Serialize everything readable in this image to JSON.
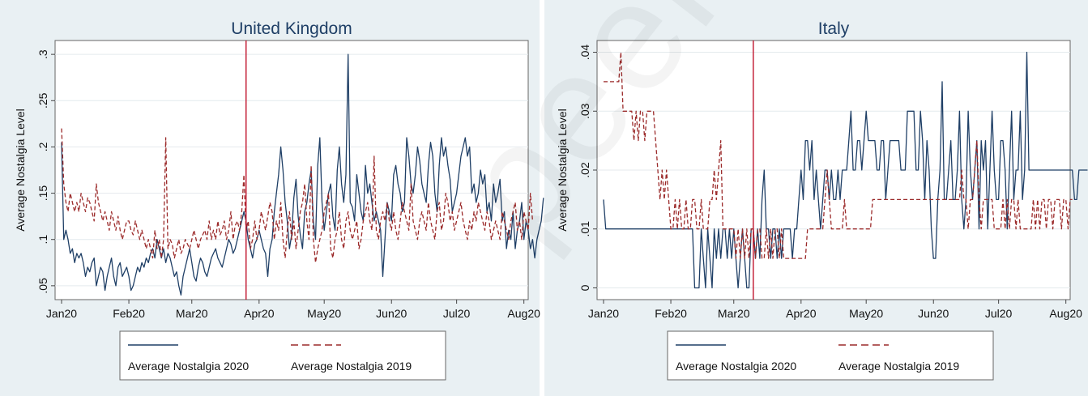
{
  "figure": {
    "background": "#e9f0f3",
    "plot_background": "#ffffff",
    "line_2020_color": "#1f3f66",
    "line_2019_color": "#9b2a2a",
    "event_line_color": "#c0142c",
    "watermark": "peer re"
  },
  "chart_data": [
    {
      "type": "line",
      "title": "United Kingdom",
      "ylabel": "Average Nostalgia Level",
      "xlabel": "",
      "ylim": [
        0.035,
        0.315
      ],
      "yticks": [
        0.05,
        0.1,
        0.15,
        0.2,
        0.25,
        0.3
      ],
      "ytick_labels": [
        ".05",
        ".1",
        ".15",
        ".2",
        ".25",
        ".3"
      ],
      "xlim": [
        0,
        212
      ],
      "xticks": [
        0,
        31,
        60,
        91,
        121,
        152,
        182,
        213
      ],
      "xtick_labels": [
        "Jan20",
        "Feb20",
        "Mar20",
        "Apr20",
        "May20",
        "Jun20",
        "Jul20",
        "Aug20"
      ],
      "event_x": 85,
      "legend": [
        "Average Nostalgia 2020",
        "Average Nostalgia 2019"
      ],
      "legend_position": "bottom",
      "grid": "horizontal",
      "series": [
        {
          "name": "Average Nostalgia 2020",
          "style": "solid",
          "values": [
            0.205,
            0.1,
            0.11,
            0.1,
            0.085,
            0.09,
            0.075,
            0.085,
            0.08,
            0.085,
            0.075,
            0.06,
            0.07,
            0.065,
            0.075,
            0.08,
            0.05,
            0.06,
            0.07,
            0.065,
            0.045,
            0.06,
            0.07,
            0.08,
            0.06,
            0.05,
            0.07,
            0.075,
            0.06,
            0.065,
            0.07,
            0.06,
            0.045,
            0.05,
            0.06,
            0.07,
            0.065,
            0.075,
            0.07,
            0.08,
            0.075,
            0.085,
            0.09,
            0.08,
            0.1,
            0.09,
            0.08,
            0.09,
            0.075,
            0.085,
            0.08,
            0.07,
            0.06,
            0.065,
            0.05,
            0.04,
            0.06,
            0.07,
            0.08,
            0.09,
            0.075,
            0.06,
            0.055,
            0.07,
            0.08,
            0.075,
            0.065,
            0.06,
            0.07,
            0.08,
            0.085,
            0.09,
            0.08,
            0.075,
            0.07,
            0.08,
            0.09,
            0.1,
            0.095,
            0.085,
            0.09,
            0.1,
            0.11,
            0.12,
            0.13,
            0.12,
            0.1,
            0.09,
            0.08,
            0.095,
            0.1,
            0.11,
            0.1,
            0.09,
            0.085,
            0.06,
            0.09,
            0.1,
            0.13,
            0.15,
            0.17,
            0.2,
            0.175,
            0.14,
            0.12,
            0.09,
            0.105,
            0.145,
            0.165,
            0.125,
            0.105,
            0.09,
            0.13,
            0.14,
            0.16,
            0.175,
            0.12,
            0.1,
            0.18,
            0.21,
            0.14,
            0.11,
            0.13,
            0.15,
            0.16,
            0.125,
            0.11,
            0.175,
            0.2,
            0.16,
            0.14,
            0.17,
            0.3,
            0.14,
            0.135,
            0.12,
            0.17,
            0.15,
            0.13,
            0.12,
            0.18,
            0.15,
            0.16,
            0.14,
            0.12,
            0.13,
            0.12,
            0.11,
            0.06,
            0.1,
            0.14,
            0.13,
            0.12,
            0.17,
            0.18,
            0.16,
            0.15,
            0.13,
            0.14,
            0.21,
            0.19,
            0.16,
            0.15,
            0.17,
            0.2,
            0.185,
            0.16,
            0.15,
            0.14,
            0.18,
            0.205,
            0.19,
            0.15,
            0.13,
            0.18,
            0.21,
            0.19,
            0.2,
            0.18,
            0.165,
            0.13,
            0.14,
            0.15,
            0.17,
            0.19,
            0.2,
            0.21,
            0.19,
            0.2,
            0.15,
            0.16,
            0.14,
            0.15,
            0.175,
            0.16,
            0.17,
            0.13,
            0.14,
            0.12,
            0.16,
            0.14,
            0.15,
            0.165,
            0.12,
            0.13,
            0.09,
            0.11,
            0.1,
            0.13,
            0.09,
            0.11,
            0.12,
            0.14,
            0.1,
            0.12,
            0.11,
            0.09,
            0.1,
            0.08,
            0.1,
            0.11,
            0.12,
            0.145
          ]
        },
        {
          "name": "Average Nostalgia 2019",
          "style": "dashed",
          "values": [
            0.22,
            0.16,
            0.14,
            0.13,
            0.15,
            0.14,
            0.13,
            0.14,
            0.13,
            0.15,
            0.14,
            0.13,
            0.145,
            0.14,
            0.13,
            0.12,
            0.16,
            0.14,
            0.13,
            0.12,
            0.13,
            0.12,
            0.11,
            0.13,
            0.12,
            0.11,
            0.125,
            0.11,
            0.1,
            0.11,
            0.12,
            0.12,
            0.11,
            0.105,
            0.12,
            0.11,
            0.1,
            0.11,
            0.1,
            0.09,
            0.1,
            0.09,
            0.08,
            0.11,
            0.09,
            0.1,
            0.08,
            0.1,
            0.21,
            0.09,
            0.1,
            0.095,
            0.08,
            0.09,
            0.1,
            0.085,
            0.09,
            0.1,
            0.095,
            0.09,
            0.1,
            0.11,
            0.1,
            0.09,
            0.1,
            0.105,
            0.11,
            0.1,
            0.12,
            0.1,
            0.11,
            0.1,
            0.12,
            0.105,
            0.11,
            0.12,
            0.1,
            0.11,
            0.13,
            0.1,
            0.115,
            0.12,
            0.11,
            0.13,
            0.17,
            0.11,
            0.12,
            0.09,
            0.1,
            0.12,
            0.1,
            0.11,
            0.13,
            0.12,
            0.11,
            0.125,
            0.14,
            0.13,
            0.1,
            0.12,
            0.11,
            0.14,
            0.1,
            0.08,
            0.11,
            0.13,
            0.1,
            0.12,
            0.09,
            0.11,
            0.13,
            0.14,
            0.16,
            0.12,
            0.1,
            0.18,
            0.1,
            0.075,
            0.09,
            0.1,
            0.11,
            0.13,
            0.14,
            0.15,
            0.09,
            0.08,
            0.1,
            0.11,
            0.13,
            0.1,
            0.09,
            0.12,
            0.13,
            0.11,
            0.1,
            0.11,
            0.12,
            0.09,
            0.1,
            0.12,
            0.13,
            0.14,
            0.12,
            0.11,
            0.19,
            0.11,
            0.1,
            0.12,
            0.13,
            0.12,
            0.14,
            0.12,
            0.11,
            0.13,
            0.11,
            0.1,
            0.12,
            0.14,
            0.13,
            0.12,
            0.11,
            0.16,
            0.12,
            0.11,
            0.1,
            0.12,
            0.13,
            0.12,
            0.11,
            0.14,
            0.12,
            0.11,
            0.1,
            0.13,
            0.14,
            0.11,
            0.12,
            0.15,
            0.14,
            0.12,
            0.13,
            0.11,
            0.12,
            0.13,
            0.14,
            0.12,
            0.11,
            0.1,
            0.12,
            0.11,
            0.13,
            0.12,
            0.14,
            0.13,
            0.12,
            0.11,
            0.13,
            0.12,
            0.1,
            0.11,
            0.12,
            0.11,
            0.1,
            0.13,
            0.12,
            0.11,
            0.1,
            0.12,
            0.13,
            0.14,
            0.11,
            0.12,
            0.1,
            0.13,
            0.12,
            0.11,
            0.15,
            0.12
          ]
        }
      ]
    },
    {
      "type": "line",
      "title": "Italy",
      "ylabel": "Average Nostalgia Level",
      "xlabel": "",
      "ylim": [
        -0.002,
        0.042
      ],
      "yticks": [
        0,
        0.01,
        0.02,
        0.03,
        0.04
      ],
      "ytick_labels": [
        "0",
        ".01",
        ".02",
        ".03",
        ".04"
      ],
      "xlim": [
        0,
        212
      ],
      "xticks": [
        0,
        31,
        60,
        91,
        121,
        152,
        182,
        213
      ],
      "xtick_labels": [
        "Jan20",
        "Feb20",
        "Mar20",
        "Apr20",
        "May20",
        "Jun20",
        "Jul20",
        "Aug20"
      ],
      "event_x": 69,
      "legend": [
        "Average Nostalgia 2020",
        "Average Nostalgia 2019"
      ],
      "legend_position": "bottom",
      "grid": "horizontal",
      "series": [
        {
          "name": "Average Nostalgia 2020",
          "style": "solid",
          "values": [
            0.015,
            0.01,
            0.01,
            0.01,
            0.01,
            0.01,
            0.01,
            0.01,
            0.01,
            0.01,
            0.01,
            0.01,
            0.01,
            0.01,
            0.01,
            0.01,
            0.01,
            0.01,
            0.01,
            0.01,
            0.01,
            0.01,
            0.01,
            0.01,
            0.01,
            0.01,
            0.01,
            0.01,
            0.01,
            0.01,
            0.01,
            0.01,
            0.01,
            0.01,
            0.01,
            0.01,
            0.01,
            0.01,
            0.01,
            0.01,
            0.01,
            0.01,
            0.0,
            0.0,
            0.0,
            0.01,
            0.005,
            0.0,
            0.01,
            0.005,
            0.0,
            0.01,
            0.005,
            0.01,
            0.005,
            0.01,
            0.01,
            0.005,
            0.01,
            0.005,
            0.01,
            0.005,
            0.0,
            0.005,
            0.01,
            0.005,
            0.0,
            0.0,
            0.01,
            0.01,
            0.005,
            0.01,
            0.005,
            0.015,
            0.02,
            0.01,
            0.01,
            0.005,
            0.01,
            0.01,
            0.005,
            0.01,
            0.005,
            0.01,
            0.01,
            0.01,
            0.01,
            0.005,
            0.01,
            0.01,
            0.015,
            0.02,
            0.015,
            0.025,
            0.025,
            0.02,
            0.025,
            0.015,
            0.02,
            0.015,
            0.01,
            0.015,
            0.02,
            0.02,
            0.015,
            0.02,
            0.015,
            0.015,
            0.02,
            0.015,
            0.02,
            0.02,
            0.02,
            0.025,
            0.03,
            0.02,
            0.02,
            0.025,
            0.025,
            0.02,
            0.025,
            0.03,
            0.025,
            0.025,
            0.025,
            0.025,
            0.02,
            0.02,
            0.025,
            0.025,
            0.015,
            0.02,
            0.025,
            0.025,
            0.025,
            0.025,
            0.025,
            0.02,
            0.02,
            0.02,
            0.03,
            0.03,
            0.03,
            0.03,
            0.02,
            0.02,
            0.03,
            0.025,
            0.015,
            0.025,
            0.02,
            0.01,
            0.005,
            0.005,
            0.015,
            0.02,
            0.035,
            0.015,
            0.015,
            0.02,
            0.025,
            0.015,
            0.015,
            0.02,
            0.03,
            0.015,
            0.01,
            0.015,
            0.03,
            0.02,
            0.015,
            0.02,
            0.025,
            0.01,
            0.025,
            0.02,
            0.025,
            0.01,
            0.02,
            0.03,
            0.02,
            0.015,
            0.015,
            0.025,
            0.025,
            0.02,
            0.01,
            0.02,
            0.03,
            0.015,
            0.02,
            0.02,
            0.03,
            0.015,
            0.02,
            0.04,
            0.02,
            0.02,
            0.02,
            0.02,
            0.02,
            0.02,
            0.02,
            0.02,
            0.02,
            0.02,
            0.02,
            0.02,
            0.02,
            0.02,
            0.02,
            0.02,
            0.02,
            0.02,
            0.02,
            0.02,
            0.02,
            0.015,
            0.015,
            0.02,
            0.02,
            0.02,
            0.02,
            0.02
          ]
        },
        {
          "name": "Average Nostalgia 2019",
          "style": "dashed",
          "values": [
            0.035,
            0.035,
            0.035,
            0.035,
            0.035,
            0.035,
            0.035,
            0.035,
            0.04,
            0.03,
            0.03,
            0.03,
            0.03,
            0.03,
            0.025,
            0.03,
            0.025,
            0.03,
            0.03,
            0.025,
            0.03,
            0.03,
            0.03,
            0.03,
            0.025,
            0.02,
            0.015,
            0.02,
            0.015,
            0.02,
            0.015,
            0.01,
            0.01,
            0.015,
            0.01,
            0.015,
            0.01,
            0.01,
            0.015,
            0.01,
            0.01,
            0.015,
            0.015,
            0.01,
            0.01,
            0.015,
            0.01,
            0.01,
            0.01,
            0.015,
            0.015,
            0.02,
            0.015,
            0.02,
            0.025,
            0.01,
            0.01,
            0.01,
            0.01,
            0.01,
            0.01,
            0.005,
            0.01,
            0.005,
            0.01,
            0.005,
            0.01,
            0.005,
            0.01,
            0.01,
            0.005,
            0.01,
            0.01,
            0.005,
            0.005,
            0.01,
            0.005,
            0.01,
            0.005,
            0.01,
            0.01,
            0.005,
            0.01,
            0.005,
            0.005,
            0.005,
            0.005,
            0.005,
            0.005,
            0.005,
            0.005,
            0.005,
            0.005,
            0.005,
            0.01,
            0.01,
            0.01,
            0.01,
            0.01,
            0.01,
            0.01,
            0.01,
            0.015,
            0.02,
            0.015,
            0.01,
            0.01,
            0.01,
            0.01,
            0.01,
            0.01,
            0.015,
            0.01,
            0.01,
            0.01,
            0.01,
            0.01,
            0.01,
            0.01,
            0.01,
            0.01,
            0.01,
            0.01,
            0.01,
            0.015,
            0.015,
            0.015,
            0.015,
            0.015,
            0.015,
            0.015,
            0.015,
            0.015,
            0.015,
            0.015,
            0.015,
            0.015,
            0.015,
            0.015,
            0.015,
            0.015,
            0.015,
            0.015,
            0.015,
            0.015,
            0.015,
            0.015,
            0.015,
            0.015,
            0.015,
            0.015,
            0.015,
            0.015,
            0.015,
            0.015,
            0.015,
            0.015,
            0.015,
            0.015,
            0.015,
            0.015,
            0.015,
            0.015,
            0.015,
            0.015,
            0.02,
            0.015,
            0.015,
            0.01,
            0.015,
            0.015,
            0.02,
            0.025,
            0.015,
            0.01,
            0.015,
            0.015,
            0.015,
            0.015,
            0.015,
            0.01,
            0.01,
            0.01,
            0.01,
            0.015,
            0.01,
            0.015,
            0.01,
            0.015,
            0.015,
            0.01,
            0.015,
            0.01,
            0.01,
            0.01,
            0.01,
            0.01,
            0.01,
            0.015,
            0.01,
            0.015,
            0.01,
            0.015,
            0.015,
            0.01,
            0.015,
            0.015,
            0.01,
            0.015,
            0.015,
            0.015,
            0.01,
            0.015,
            0.015,
            0.01,
            0.015,
            0.015
          ]
        }
      ]
    }
  ]
}
